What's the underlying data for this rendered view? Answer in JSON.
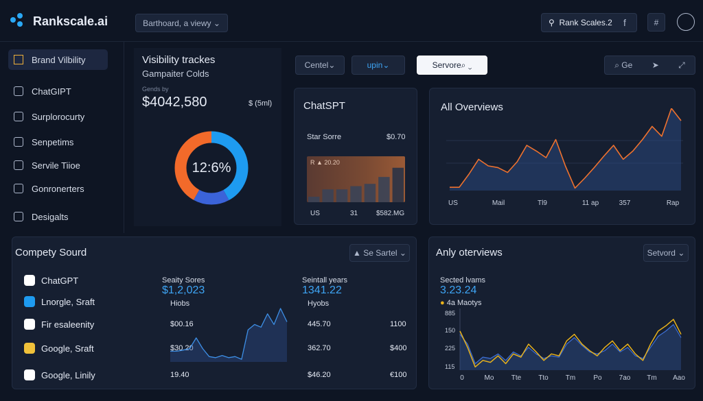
{
  "topbar": {
    "logo": "Rankscale.ai",
    "view_select": "Barthoard, a viewy",
    "search": "Rank Scales.2",
    "icon_label": "f"
  },
  "sidebar": {
    "items": [
      "Brand Vilbility",
      "ChatGIPT",
      "Surplorocurty",
      "Senpetims",
      "Servile Tiioe",
      "Gonronerters",
      "Desigalts"
    ]
  },
  "visibility_card": {
    "title": "Visibility trackes",
    "subtitle": "Gampaiter Colds",
    "caption": "Gends by",
    "amount": "$4042,580",
    "unit": "$ (5ml)",
    "donut_label": "12:6%",
    "donut_segments": [
      {
        "color": "#1e9bf0",
        "value": 42
      },
      {
        "color": "#3b63d9",
        "value": 16
      },
      {
        "color": "#f26a2a",
        "value": 42
      }
    ]
  },
  "toolbar": {
    "filters": [
      "Centel",
      "upin",
      "Servore"
    ],
    "action": "Ge"
  },
  "chatspt_card": {
    "title": "ChatSPT",
    "metric_label": "Star Sorre",
    "metric_value": "$0.70",
    "badge": "R ▲ 20.20",
    "ylim": [
      0,
      100
    ],
    "bars": [
      12,
      28,
      28,
      35,
      40,
      55,
      75
    ],
    "labels": [
      "US",
      "31",
      "$582.MG"
    ]
  },
  "overview_card": {
    "title": "All Overviews",
    "x_labels": [
      "US",
      "Mail",
      "Tl9",
      "11 ap",
      "357",
      "Rap"
    ],
    "ylim": [
      0,
      100
    ],
    "values": [
      4,
      4,
      20,
      38,
      30,
      28,
      22,
      35,
      55,
      48,
      40,
      62,
      30,
      3,
      15,
      28,
      42,
      55,
      38,
      48,
      62,
      78,
      66,
      100,
      85
    ]
  },
  "sources_card": {
    "title": "Compety Sourd",
    "select": "Se Sartel",
    "col1": {
      "header": "Seaity Sores",
      "value": "$1,2,023",
      "sub": "Hiobs"
    },
    "col2": {
      "header": "Seintall years",
      "value": "1341.22",
      "sub": "Hyobs"
    },
    "rows": [
      [
        "ChatGPT"
      ],
      [
        "Lnorgle, Sraft"
      ],
      [
        "Fir esaleenity",
        "$00.16",
        "445.70",
        "1100"
      ],
      [
        "Google, Sraft",
        "$30.20",
        "362.70",
        "$400"
      ],
      [
        "Google, Linily",
        "19.40",
        "$46.20",
        "€100"
      ]
    ],
    "ylim": [
      0,
      100
    ],
    "sparkline": [
      20,
      20,
      22,
      25,
      45,
      25,
      10,
      8,
      12,
      8,
      10,
      5,
      60,
      70,
      65,
      90,
      70,
      100,
      75
    ]
  },
  "anly_card": {
    "title": "Anly oterviews",
    "select": "Setvord",
    "caption": "Sected lvams",
    "value": "3.23.24",
    "legend": "4a Maotys",
    "y_labels": [
      "885",
      "150",
      "225",
      "115"
    ],
    "x_labels": [
      "0",
      "Mo",
      "Tte",
      "Tto",
      "Tm",
      "Po",
      "7ao",
      "Tm",
      "Aao"
    ],
    "ylim": [
      0,
      100
    ],
    "series": [
      {
        "color": "#3d6fd6",
        "values": [
          55,
          40,
          10,
          20,
          18,
          25,
          15,
          28,
          22,
          35,
          25,
          18,
          22,
          20,
          40,
          50,
          38,
          28,
          25,
          30,
          40,
          28,
          35,
          22,
          18,
          35,
          52,
          60,
          70,
          50
        ]
      },
      {
        "color": "#e8b21c",
        "values": [
          60,
          35,
          5,
          15,
          12,
          22,
          10,
          25,
          20,
          40,
          28,
          15,
          25,
          22,
          45,
          55,
          40,
          30,
          22,
          35,
          45,
          30,
          40,
          25,
          15,
          40,
          60,
          68,
          78,
          55
        ]
      }
    ]
  }
}
